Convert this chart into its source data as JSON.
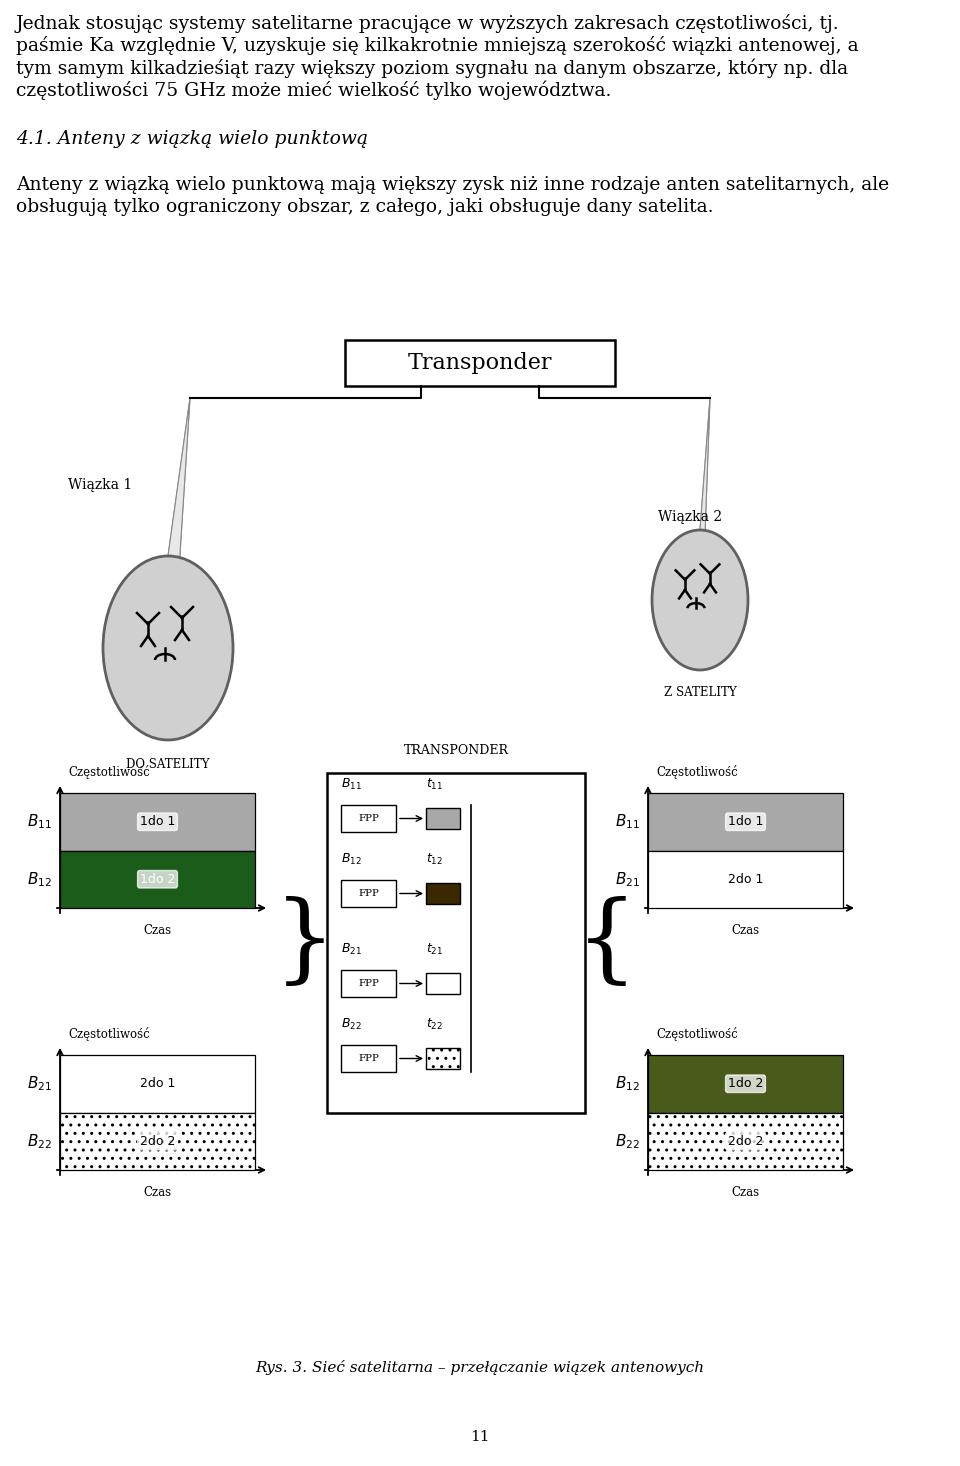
{
  "bg_color": "#ffffff",
  "para1_line1": "Jednak stosując systemy satelitarne pracujące w wyższych zakresach częstotliwości, tj.",
  "para1_line2": "paśmie Ka względnie V, uzyskuje się kilkakrotnie mniejszą szerokość wiązki antenowej, a",
  "para1_line3": "tym samym kilkadzieśiąt razy większy poziom sygnału na danym obszarze, który np. dla",
  "para1_line4": "częstotliwości 75 GHz może mieć wielkość tylko województwa.",
  "heading": "4.1. Anteny z wiązką wielo punktową",
  "para2_line1": "Anteny z wiązką wielo punktową mają większy zysk niż inne rodzaje anten satelitarnych, ale",
  "para2_line2": "obsługują tylko ograniczony obszar, z całego, jaki obsługuje dany satelita.",
  "transponder": "Transponder",
  "transponder_block": "TRANSPONDER",
  "wiazka1": "Wiązka 1",
  "wiazka2": "Wiązka 2",
  "do_satelity": "DO SATELITY",
  "z_satelity": "Z SATELITY",
  "czestotliwosc": "Częstotliwość",
  "czas": "Czas",
  "fig_caption": "Rys. 3. Sieć satelitarna – przełączanie wiązek antenowych",
  "page_num": "11",
  "gray_band": "#a8a8a8",
  "dark_green_band": "#1a5c1a",
  "olive_band": "#4a5a1a",
  "dark_brown": "#3a2800",
  "cone_dark": "#c0c0c0",
  "cone_light": "#e0e0e0",
  "cone_face": "#cccccc"
}
